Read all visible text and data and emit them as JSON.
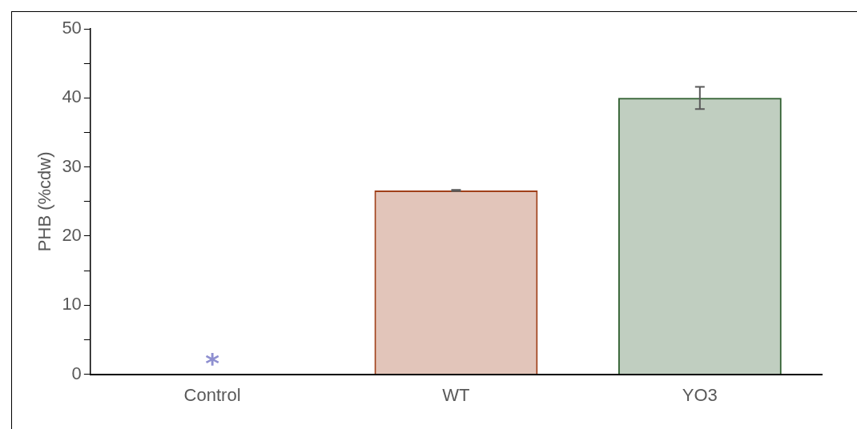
{
  "chart_data": {
    "type": "bar",
    "ylabel": "PHB (%cdw)",
    "categories": [
      "Control",
      "WT",
      "YO3"
    ],
    "values": [
      0,
      26.6,
      40.0
    ],
    "errors": [
      null,
      0.1,
      1.6
    ],
    "colors": [
      "#8e8fd0",
      "#a0401a",
      "#2e5e2e"
    ],
    "ylim": [
      0,
      50
    ],
    "yticks": [
      0,
      {
        "value": 5,
        "label": null
      },
      10,
      {
        "value": 15,
        "label": null
      },
      20,
      {
        "value": 25,
        "label": null
      },
      30,
      {
        "value": 35,
        "label": null
      },
      40,
      {
        "value": 45,
        "label": null
      },
      50
    ],
    "grid": false,
    "legend": false,
    "annotations": [
      "*"
    ]
  }
}
